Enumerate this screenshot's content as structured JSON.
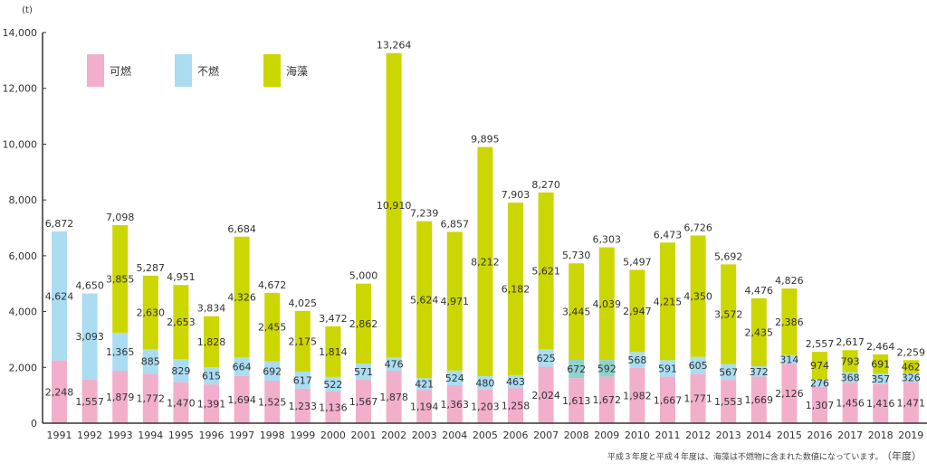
{
  "chart_data": {
    "type": "bar",
    "stacked": true,
    "title": "",
    "ylabel": "(t)",
    "xlabel": "（年度）",
    "ylim": [
      0,
      14000
    ],
    "yticks": [
      0,
      2000,
      4000,
      6000,
      8000,
      10000,
      12000,
      14000
    ],
    "ytick_labels": [
      "0",
      "2,000",
      "4,000",
      "6,000",
      "8,000",
      "10,000",
      "12,000",
      "14,000"
    ],
    "grid": false,
    "legend_position": "top-left",
    "categories": [
      "1991",
      "1992",
      "1993",
      "1994",
      "1995",
      "1996",
      "1997",
      "1998",
      "1999",
      "2000",
      "2001",
      "2002",
      "2003",
      "2004",
      "2005",
      "2006",
      "2007",
      "2008",
      "2009",
      "2010",
      "2011",
      "2012",
      "2013",
      "2014",
      "2015",
      "2016",
      "2017",
      "2018",
      "2019"
    ],
    "series": [
      {
        "name": "可燃",
        "color": "#f2afcb",
        "values": [
          2248,
          1557,
          1879,
          1772,
          1470,
          1391,
          1694,
          1525,
          1233,
          1136,
          1567,
          1878,
          1194,
          1363,
          1203,
          1258,
          2024,
          1613,
          1672,
          1982,
          1667,
          1771,
          1553,
          1669,
          2126,
          1307,
          1456,
          1416,
          1471
        ]
      },
      {
        "name": "不燃",
        "color": "#aadcf2",
        "values": [
          4624,
          3093,
          1365,
          885,
          829,
          615,
          664,
          692,
          617,
          522,
          571,
          476,
          421,
          524,
          480,
          463,
          625,
          672,
          592,
          568,
          591,
          605,
          567,
          372,
          314,
          276,
          368,
          357,
          326
        ]
      },
      {
        "name": "海藻",
        "color": "#ccd600",
        "values": [
          0,
          0,
          3855,
          2630,
          2653,
          1828,
          4326,
          2455,
          2175,
          1814,
          2862,
          10910,
          5624,
          4971,
          8212,
          6182,
          5621,
          3445,
          4039,
          2947,
          4215,
          4350,
          3572,
          2435,
          2386,
          974,
          793,
          691,
          462
        ]
      }
    ],
    "totals": [
      6872,
      4650,
      7098,
      5287,
      4951,
      3834,
      6684,
      4672,
      4025,
      3472,
      5000,
      13264,
      7239,
      6857,
      9895,
      7903,
      8270,
      5730,
      6303,
      5497,
      6473,
      6726,
      5692,
      4476,
      4826,
      2557,
      2617,
      2464,
      2259
    ],
    "highlight_color": "#8fd3cf",
    "highlighted_nonburnable_years": [
      "2008",
      "2009"
    ],
    "footnote": "平成３年度と平成４年度は、海藻は不燃物に含まれた数値になっています。"
  }
}
